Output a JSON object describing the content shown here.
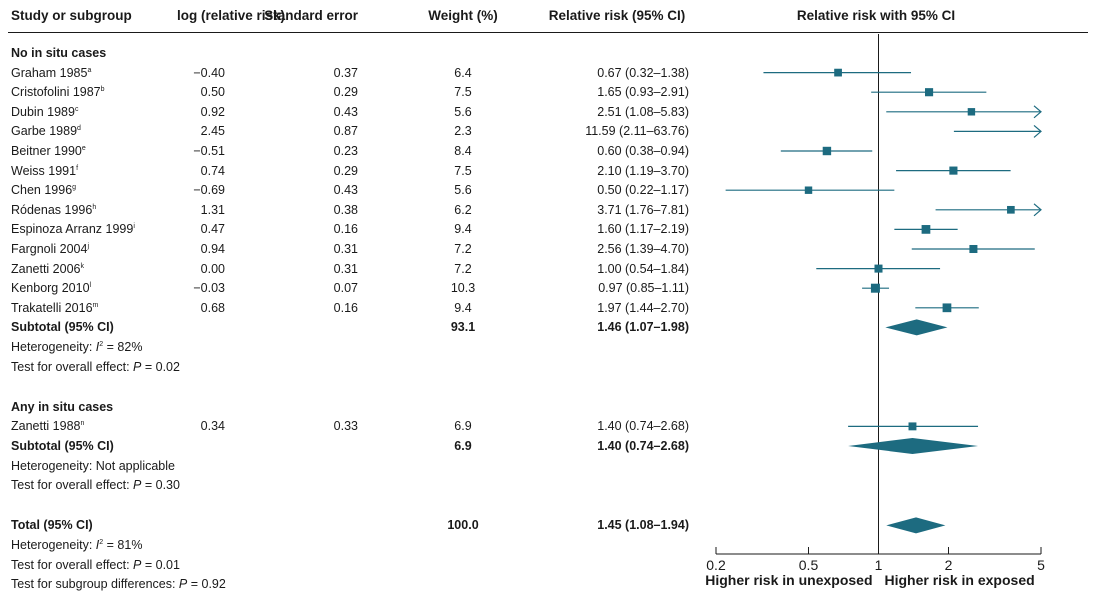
{
  "columns": {
    "study": "Study or subgroup",
    "log_rr": "log (relative risk)",
    "se": "Standard error",
    "weight": "Weight (%)",
    "rr_ci": "Relative risk (95% CI)",
    "plot": "Relative risk with 95% CI"
  },
  "groups": [
    {
      "title": "No in situ cases",
      "studies": [
        {
          "name": "Graham 1985",
          "sup": "a",
          "log_rr": "−0.40",
          "se": "0.37",
          "weight": "6.4",
          "rr_ci": "0.67 (0.32–1.38)"
        },
        {
          "name": "Cristofolini 1987",
          "sup": "b",
          "log_rr": "0.50",
          "se": "0.29",
          "weight": "7.5",
          "rr_ci": "1.65 (0.93–2.91)"
        },
        {
          "name": "Dubin 1989",
          "sup": "c",
          "log_rr": "0.92",
          "se": "0.43",
          "weight": "5.6",
          "rr_ci": "2.51 (1.08–5.83)"
        },
        {
          "name": "Garbe 1989",
          "sup": "d",
          "log_rr": "2.45",
          "se": "0.87",
          "weight": "2.3",
          "rr_ci": "11.59 (2.11–63.76)"
        },
        {
          "name": "Beitner 1990",
          "sup": "e",
          "log_rr": "−0.51",
          "se": "0.23",
          "weight": "8.4",
          "rr_ci": "0.60 (0.38–0.94)"
        },
        {
          "name": "Weiss 1991",
          "sup": "f",
          "log_rr": "0.74",
          "se": "0.29",
          "weight": "7.5",
          "rr_ci": "2.10 (1.19–3.70)"
        },
        {
          "name": "Chen 1996",
          "sup": "g",
          "log_rr": "−0.69",
          "se": "0.43",
          "weight": "5.6",
          "rr_ci": "0.50 (0.22–1.17)"
        },
        {
          "name": "Ródenas 1996",
          "sup": "h",
          "log_rr": "1.31",
          "se": "0.38",
          "weight": "6.2",
          "rr_ci": "3.71 (1.76–7.81)"
        },
        {
          "name": "Espinoza Arranz 1999",
          "sup": "i",
          "log_rr": "0.47",
          "se": "0.16",
          "weight": "9.4",
          "rr_ci": "1.60 (1.17–2.19)"
        },
        {
          "name": "Fargnoli 2004",
          "sup": "j",
          "log_rr": "0.94",
          "se": "0.31",
          "weight": "7.2",
          "rr_ci": "2.56 (1.39–4.70)"
        },
        {
          "name": "Zanetti 2006",
          "sup": "k",
          "log_rr": "0.00",
          "se": "0.31",
          "weight": "7.2",
          "rr_ci": "1.00 (0.54–1.84)"
        },
        {
          "name": "Kenborg 2010",
          "sup": "l",
          "log_rr": "−0.03",
          "se": "0.07",
          "weight": "10.3",
          "rr_ci": "0.97 (0.85–1.11)"
        },
        {
          "name": "Trakatelli 2016",
          "sup": "m",
          "log_rr": "0.68",
          "se": "0.16",
          "weight": "9.4",
          "rr_ci": "1.97 (1.44–2.70)"
        }
      ],
      "subtotal": {
        "label": "Subtotal (95% CI)",
        "weight": "93.1",
        "rr_ci": "1.46 (1.07–1.98)"
      },
      "heterogeneity": {
        "prefix": "Heterogeneity: ",
        "sym": "I",
        "sym_sup": "2",
        "value": " = 82%"
      },
      "overall_effect": {
        "prefix": "Test for overall effect: ",
        "sym": "P",
        "value": " = 0.02"
      }
    },
    {
      "title": "Any in situ cases",
      "studies": [
        {
          "name": "Zanetti 1988",
          "sup": "n",
          "log_rr": "0.34",
          "se": "0.33",
          "weight": "6.9",
          "rr_ci": "1.40 (0.74–2.68)"
        }
      ],
      "subtotal": {
        "label": "Subtotal (95% CI)",
        "weight": "6.9",
        "rr_ci": "1.40 (0.74–2.68)"
      },
      "heterogeneity": {
        "prefix": "Heterogeneity: Not applicable"
      },
      "overall_effect": {
        "prefix": "Test for overall effect: ",
        "sym": "P",
        "value": " = 0.30"
      }
    }
  ],
  "total": {
    "label": "Total (95% CI)",
    "weight": "100.0",
    "rr_ci": "1.45 (1.08–1.94)",
    "heterogeneity": {
      "prefix": "Heterogeneity: ",
      "sym": "I",
      "sym_sup": "2",
      "value": " = 81%"
    },
    "overall_effect": {
      "prefix": "Test for overall effect: ",
      "sym": "P",
      "value": " = 0.01"
    },
    "subgroup_diff": {
      "prefix": "Test for subgroup differences: ",
      "sym": "P",
      "value": " = 0.92"
    }
  },
  "axis": {
    "ticks": [
      "0.2",
      "0.5",
      "1",
      "2",
      "5"
    ],
    "left_label": "Higher risk in unexposed",
    "right_label": "Higher risk in exposed"
  },
  "colors": {
    "marker": "#1d6b80",
    "text": "#1a1a1a"
  },
  "chart_data": {
    "type": "forest",
    "x_scale": "log",
    "xlim": [
      0.2,
      5
    ],
    "x_ticks": [
      0.2,
      0.5,
      1,
      2,
      5
    ],
    "reference_line": 1,
    "studies": [
      {
        "group": 0,
        "row": 0,
        "est": 0.67,
        "lo": 0.32,
        "hi": 1.38,
        "weight": 6.4
      },
      {
        "group": 0,
        "row": 1,
        "est": 1.65,
        "lo": 0.93,
        "hi": 2.91,
        "weight": 7.5
      },
      {
        "group": 0,
        "row": 2,
        "est": 2.51,
        "lo": 1.08,
        "hi": 5.83,
        "weight": 5.6
      },
      {
        "group": 0,
        "row": 3,
        "est": 11.59,
        "lo": 2.11,
        "hi": 63.76,
        "weight": 2.3
      },
      {
        "group": 0,
        "row": 4,
        "est": 0.6,
        "lo": 0.38,
        "hi": 0.94,
        "weight": 8.4
      },
      {
        "group": 0,
        "row": 5,
        "est": 2.1,
        "lo": 1.19,
        "hi": 3.7,
        "weight": 7.5
      },
      {
        "group": 0,
        "row": 6,
        "est": 0.5,
        "lo": 0.22,
        "hi": 1.17,
        "weight": 5.6
      },
      {
        "group": 0,
        "row": 7,
        "est": 3.71,
        "lo": 1.76,
        "hi": 7.81,
        "weight": 6.2
      },
      {
        "group": 0,
        "row": 8,
        "est": 1.6,
        "lo": 1.17,
        "hi": 2.19,
        "weight": 9.4
      },
      {
        "group": 0,
        "row": 9,
        "est": 2.56,
        "lo": 1.39,
        "hi": 4.7,
        "weight": 7.2
      },
      {
        "group": 0,
        "row": 10,
        "est": 1.0,
        "lo": 0.54,
        "hi": 1.84,
        "weight": 7.2
      },
      {
        "group": 0,
        "row": 11,
        "est": 0.97,
        "lo": 0.85,
        "hi": 1.11,
        "weight": 10.3
      },
      {
        "group": 0,
        "row": 12,
        "est": 1.97,
        "lo": 1.44,
        "hi": 2.7,
        "weight": 9.4
      },
      {
        "group": 1,
        "row": 0,
        "est": 1.4,
        "lo": 0.74,
        "hi": 2.68,
        "weight": 6.9
      }
    ],
    "summaries": [
      {
        "kind": "subtotal",
        "group": 0,
        "est": 1.46,
        "lo": 1.07,
        "hi": 1.98
      },
      {
        "kind": "subtotal",
        "group": 1,
        "est": 1.4,
        "lo": 0.74,
        "hi": 2.68
      },
      {
        "kind": "total",
        "est": 1.45,
        "lo": 1.08,
        "hi": 1.94
      }
    ]
  }
}
